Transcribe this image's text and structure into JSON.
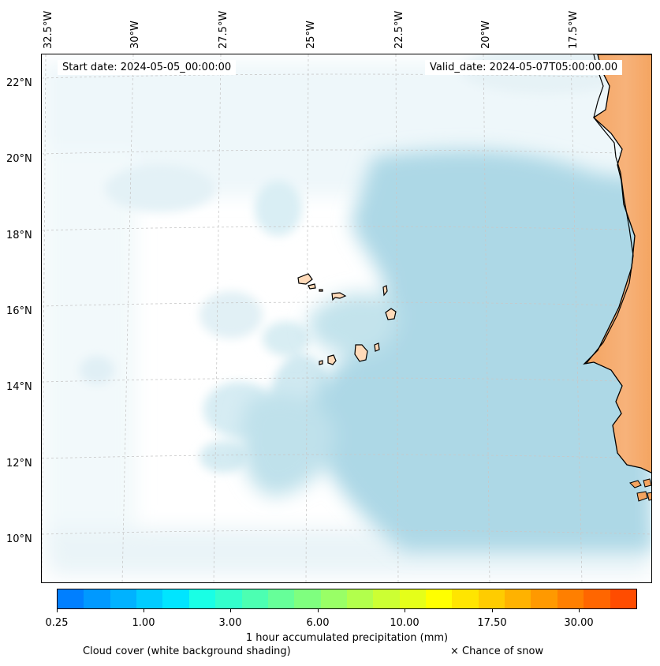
{
  "header": {
    "start_date": "Start date: 2024-05-05_00:00:00",
    "valid_date": "Valid_date: 2024-05-07T05:00:00.00"
  },
  "axes": {
    "longitude_labels": [
      "32.5°W",
      "30°W",
      "27.5°W",
      "25°W",
      "22.5°W",
      "20°W",
      "17.5°W"
    ],
    "latitude_labels": [
      "22°N",
      "20°N",
      "18°N",
      "16°N",
      "14°N",
      "12°N",
      "10°N"
    ]
  },
  "colorbar": {
    "label": "1 hour accumulated precipitation (mm)",
    "tick_labels": [
      "0.25",
      "1.00",
      "3.00",
      "6.00",
      "10.00",
      "17.50",
      "30.00"
    ],
    "colors": [
      "#007fff",
      "#0099ff",
      "#00b2ff",
      "#00ccff",
      "#00e5ff",
      "#19ffe5",
      "#33ffcc",
      "#4cffb2",
      "#66ff99",
      "#7fff7f",
      "#99ff66",
      "#b2ff4c",
      "#ccff33",
      "#e5ff19",
      "#ffff00",
      "#ffe500",
      "#ffcc00",
      "#ffb200",
      "#ff9900",
      "#ff7f00",
      "#ff6600",
      "#ff4c00"
    ]
  },
  "legend": {
    "cloud_cover": "Cloud cover (white background shading)",
    "snow": "× Chance of snow"
  },
  "colors": {
    "cloud_light": "#eaf5f8",
    "cloud_mid": "#cbe8f0",
    "cloud_dense": "#add8e6",
    "land": "#f4a460",
    "island_land": "#ffdab9"
  }
}
